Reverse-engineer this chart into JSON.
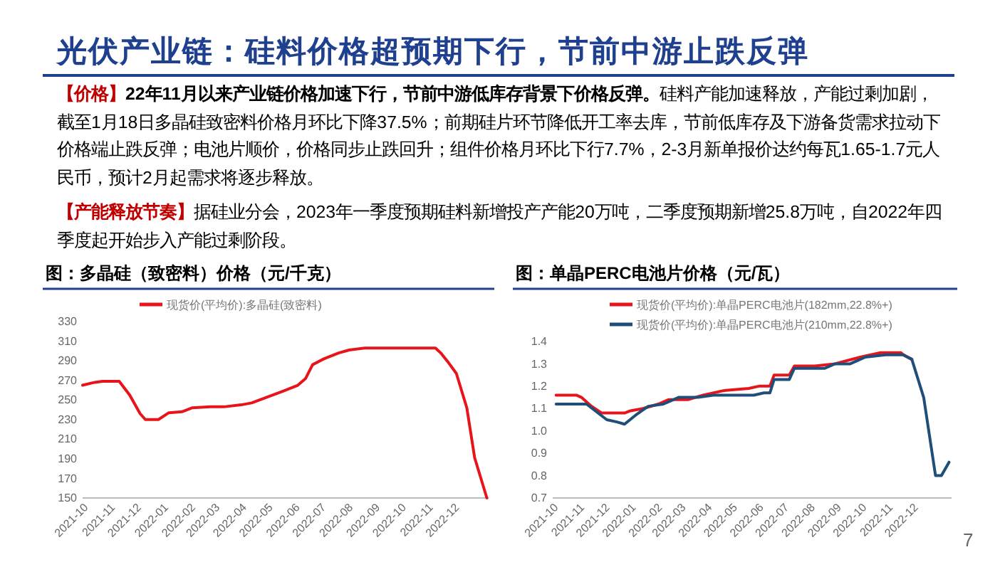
{
  "chart_data": [
    {
      "type": "other",
      "title": "光伏产业链：硅料价格超预期下行，节前中游止跌反弹",
      "annotations": [
        "【价格】",
        "22年11月以来产业链价格加速下行，节前中游低库存背景下价格反弹。",
        "硅料产能加速释放，产能过剩加剧，截至1月18日多晶硅致密料价格月环比下降37.5%；前期硅片环节降低开工率去库，节前低库存及下游备货需求拉动下价格端止跌反弹；电池片顺价，价格同步止跌回升；组件价格月环比下行7.7%，2-3月新单报价达约每瓦1.65-1.7元人民币，预计2月起需求将逐步释放。",
        "【产能释放节奏】",
        "据硅业分会，2023年一季度预期硅料新增投产产能20万吨，二季度预期新增25.8万吨，自2022年四季度起开始步入产能过剩阶段。",
        "7"
      ]
    },
    {
      "type": "line",
      "title": "图：多晶硅（致密料）价格（元/千克）",
      "legend": "top",
      "xlim": [
        "2021-10-01",
        "2023-01-10"
      ],
      "xticks": [
        "2021-10",
        "2021-11",
        "2021-12",
        "2022-01",
        "2022-02",
        "2022-03",
        "2022-04",
        "2022-05",
        "2022-06",
        "2022-07",
        "2022-08",
        "2022-09",
        "2022-10",
        "2022-11",
        "2022-12"
      ],
      "ylim": [
        150,
        330
      ],
      "yticks": [
        150,
        170,
        190,
        210,
        230,
        250,
        270,
        290,
        310,
        330
      ],
      "series": [
        {
          "name": "现货价(平均价):多晶硅(致密料)",
          "color": "#e8141b",
          "x": [
            "2021-10-01",
            "2021-10-15",
            "2021-10-24",
            "2021-11-12",
            "2021-11-24",
            "2021-12-06",
            "2021-12-12",
            "2021-12-27",
            "2022-01-08",
            "2022-01-23",
            "2022-02-04",
            "2022-02-25",
            "2022-03-12",
            "2022-04-01",
            "2022-04-13",
            "2022-05-01",
            "2022-05-19",
            "2022-06-05",
            "2022-06-14",
            "2022-06-22",
            "2022-07-05",
            "2022-07-22",
            "2022-08-03",
            "2022-08-21",
            "2022-11-10",
            "2022-11-16",
            "2022-11-25",
            "2022-12-04",
            "2022-12-16",
            "2022-12-25",
            "2023-01-08"
          ],
          "values": [
            265,
            268,
            269,
            269,
            255,
            236,
            230,
            230,
            237,
            238,
            242,
            243,
            243,
            245,
            247,
            253,
            259,
            265,
            272,
            286,
            292,
            298,
            301,
            303,
            303,
            298,
            288,
            277,
            242,
            191,
            150
          ]
        }
      ]
    },
    {
      "type": "line",
      "title": "图：单晶PERC电池片价格（元/瓦）",
      "legend": "top",
      "xlim": [
        "2021-10-01",
        "2023-01-16"
      ],
      "xticks": [
        "2021-10",
        "2021-11",
        "2021-12",
        "2022-01",
        "2022-02",
        "2022-03",
        "2022-04",
        "2022-05",
        "2022-06",
        "2022-07",
        "2022-08",
        "2022-09",
        "2022-10",
        "2022-11",
        "2022-12"
      ],
      "ylim": [
        0.7,
        1.4
      ],
      "yticks": [
        0.7,
        0.8,
        0.9,
        {
          "value": 1,
          "label": "1.0"
        },
        1.1,
        1.2,
        1.3,
        1.4
      ],
      "series": [
        {
          "name": "现货价(平均价):单晶PERC电池片(182mm,22.8%+)",
          "color": "#e8141b",
          "x": [
            "2021-10-05",
            "2021-10-29",
            "2021-11-04",
            "2021-11-16",
            "2021-11-28",
            "2021-12-25",
            "2022-01-01",
            "2022-01-16",
            "2022-02-03",
            "2022-02-15",
            "2022-03-10",
            "2022-03-28",
            "2022-04-21",
            "2022-05-21",
            "2022-06-02",
            "2022-06-15",
            "2022-06-20",
            "2022-07-08",
            "2022-07-14",
            "2022-08-07",
            "2022-08-31",
            "2022-09-30",
            "2022-10-24",
            "2022-11-17",
            "2022-11-20",
            "2022-11-30"
          ],
          "values": [
            1.16,
            1.16,
            1.15,
            1.11,
            1.08,
            1.08,
            1.09,
            1.1,
            1.12,
            1.14,
            1.14,
            1.16,
            1.18,
            1.19,
            1.2,
            1.2,
            1.25,
            1.25,
            1.29,
            1.29,
            1.3,
            1.33,
            1.35,
            1.35,
            1.34,
            1.32
          ]
        },
        {
          "name": "现货价(平均价):单晶PERC电池片(210mm,22.8%+)",
          "color": "#1f4e79",
          "x": [
            "2021-10-05",
            "2021-11-10",
            "2021-12-04",
            "2021-12-16",
            "2021-12-25",
            "2022-01-07",
            "2022-01-22",
            "2022-02-09",
            "2022-02-27",
            "2022-03-22",
            "2022-04-09",
            "2022-05-27",
            "2022-06-08",
            "2022-06-15",
            "2022-06-20",
            "2022-07-08",
            "2022-07-14",
            "2022-08-19",
            "2022-08-31",
            "2022-09-18",
            "2022-10-06",
            "2022-10-30",
            "2022-11-20",
            "2022-11-30",
            "2022-12-14",
            "2022-12-28",
            "2023-01-04",
            "2023-01-13"
          ],
          "values": [
            1.12,
            1.12,
            1.05,
            1.04,
            1.03,
            1.07,
            1.11,
            1.12,
            1.15,
            1.15,
            1.16,
            1.16,
            1.17,
            1.17,
            1.23,
            1.23,
            1.28,
            1.28,
            1.3,
            1.3,
            1.33,
            1.34,
            1.34,
            1.32,
            1.15,
            0.8,
            0.8,
            0.86
          ]
        }
      ]
    }
  ]
}
